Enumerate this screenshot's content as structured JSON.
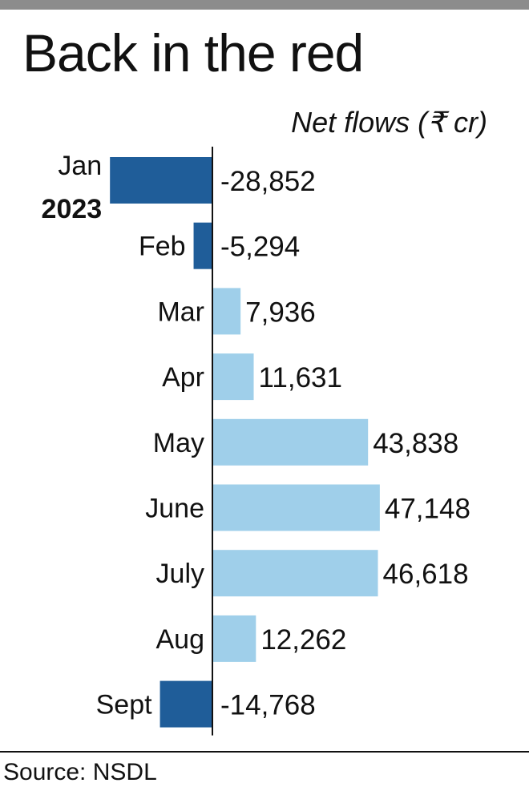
{
  "header": {
    "title": "Back in the red",
    "unit_label": "Net flows (₹ cr)"
  },
  "footer": {
    "source": "Source: NSDL"
  },
  "colors": {
    "negative_bar": "#1f5d99",
    "positive_bar": "#9fcfea",
    "text": "#111111",
    "top_rule": "#8c8c8c"
  },
  "chart_data": {
    "type": "bar",
    "orientation": "horizontal",
    "title": "Back in the red",
    "subtitle": "Net flows (₹ cr)",
    "year_label": "2023",
    "categories": [
      "Jan",
      "Feb",
      "Mar",
      "Apr",
      "May",
      "June",
      "July",
      "Aug",
      "Sept"
    ],
    "values": [
      -28852,
      -5294,
      7936,
      11631,
      43838,
      47148,
      46618,
      12262,
      -14768
    ],
    "value_labels": [
      "-28,852",
      "-5,294",
      "7,936",
      "11,631",
      "43,838",
      "47,148",
      "46,618",
      "12,262",
      "-14,768"
    ],
    "xlim": [
      -30000,
      48000
    ],
    "grid": false,
    "legend": "none"
  }
}
